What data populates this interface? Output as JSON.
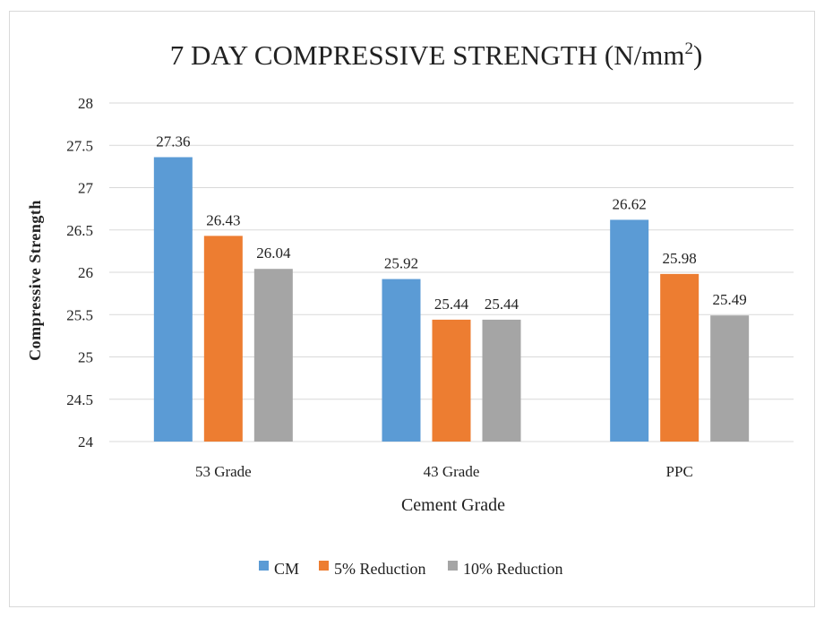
{
  "chart_data": {
    "type": "bar",
    "title": "7 DAY COMPRESSIVE STRENGTH (N/mm",
    "title_superscript": "2",
    "title_close": ")",
    "xlabel": "Cement Grade",
    "ylabel": "Compressive Strength",
    "ylim": [
      24,
      28
    ],
    "yticks": [
      "24",
      "24.5",
      "25",
      "25.5",
      "26",
      "26.5",
      "27",
      "27.5",
      "28"
    ],
    "categories": [
      "53 Grade",
      "43 Grade",
      "PPC"
    ],
    "series": [
      {
        "name": "CM",
        "color": "#5b9bd5",
        "values": [
          27.36,
          25.92,
          26.62
        ],
        "labels": [
          "27.36",
          "25.92",
          "26.62"
        ]
      },
      {
        "name": "5% Reduction",
        "color": "#ed7d31",
        "values": [
          26.43,
          25.44,
          25.98
        ],
        "labels": [
          "26.43",
          "25.44",
          "25.98"
        ]
      },
      {
        "name": "10% Reduction",
        "color": "#a5a5a5",
        "values": [
          26.04,
          25.44,
          25.49
        ],
        "labels": [
          "26.04",
          "25.44",
          "25.49"
        ]
      }
    ],
    "grid": true,
    "legend_position": "bottom"
  }
}
